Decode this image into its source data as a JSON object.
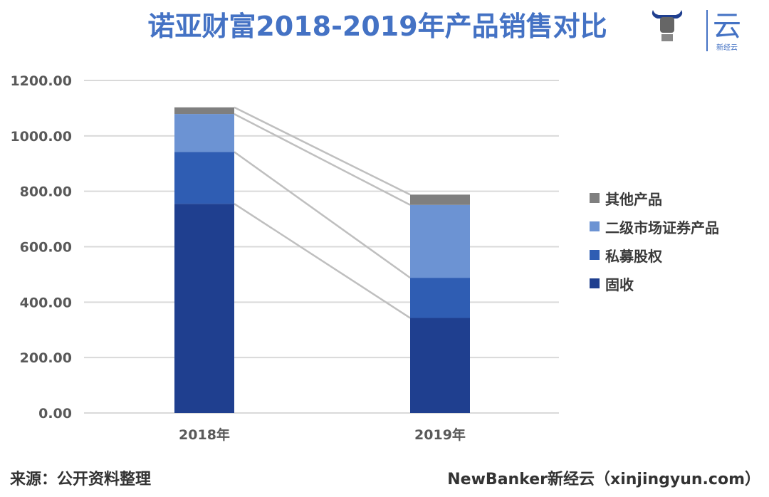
{
  "header": {
    "title": "诺亚财富2018-2019年产品销售对比",
    "logo_text": "云",
    "logo_sub": "新经云"
  },
  "footer": {
    "source": "来源：公开资料整理",
    "credit": "NewBanker新经云（xinjingyun.com）"
  },
  "colors": {
    "title": "#4472c4",
    "gushou": "#1f3f8f",
    "simu": "#2f5db3",
    "erji": "#6c93d3",
    "qita": "#7f7f7f",
    "connector": "#bfbfbf",
    "grid": "#d9d9d9"
  },
  "chart_data": {
    "type": "bar",
    "stacked": true,
    "title": "诺亚财富2018-2019年产品销售对比",
    "categories": [
      "2018年",
      "2019年"
    ],
    "series": [
      {
        "name": "固收",
        "values": [
          755,
          343
        ]
      },
      {
        "name": "私募股权",
        "values": [
          187,
          145
        ]
      },
      {
        "name": "二级市场证券产品",
        "values": [
          137,
          263
        ]
      },
      {
        "name": "其他产品",
        "values": [
          24,
          37
        ]
      }
    ],
    "ylim": [
      0,
      1200
    ],
    "yticks": [
      "0.00",
      "200.00",
      "400.00",
      "600.00",
      "800.00",
      "1000.00",
      "1200.00"
    ],
    "grid": true,
    "legend_position": "right",
    "connector_lines": true
  }
}
